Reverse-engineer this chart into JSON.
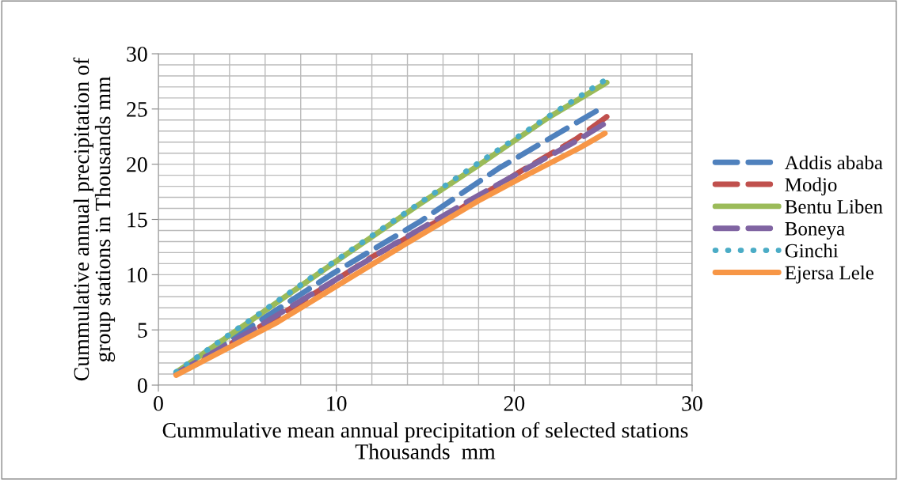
{
  "chart_data": {
    "type": "line",
    "xlabel": "Cummulative mean annual precipitation of selected stations\nThousands  mm",
    "ylabel": "Cummulative annual precipitation of\ngroup stations in Thousands mm",
    "xlim": [
      0,
      30
    ],
    "xticks": [
      0,
      10,
      20,
      30
    ],
    "ylim": [
      0,
      30
    ],
    "yticks": [
      0,
      5,
      10,
      15,
      20,
      25,
      30
    ],
    "grid": true,
    "legend": "right",
    "marker": "none",
    "series": [
      {
        "name": "Addis ababa",
        "color": "#4f81bd",
        "line_style": "dashed",
        "x": [
          1,
          5,
          9.9,
          14.7,
          19.1,
          24.6
        ],
        "values": [
          1.1,
          5.1,
          10.2,
          14.8,
          19.6,
          24.8
        ]
      },
      {
        "name": "Modjo",
        "color": "#c0504d",
        "line_style": "dashed",
        "x": [
          1,
          3.3,
          7.6,
          12,
          16.9,
          20.3,
          23.5,
          25.2
        ],
        "values": [
          1.0,
          3.0,
          7.1,
          11.6,
          15.9,
          19.3,
          22.3,
          24.3
        ]
      },
      {
        "name": "Bentu Liben",
        "color": "#9bbb59",
        "line_style": "solid",
        "x": [
          1,
          4,
          9.9,
          14.7,
          17.8,
          21.9,
          25.2
        ],
        "values": [
          1.15,
          4.5,
          11.1,
          16.4,
          19.7,
          24.2,
          27.4
        ]
      },
      {
        "name": "Boneya",
        "color": "#8064a2",
        "line_style": "dashed",
        "x": [
          1,
          5.3,
          13.4,
          17.9,
          23.6,
          25.0
        ],
        "values": [
          1.05,
          5.0,
          12.9,
          17.1,
          22.2,
          23.6
        ]
      },
      {
        "name": "Ginchi",
        "color": "#4bacc6",
        "line_style": "dotted",
        "x": [
          1,
          4,
          9.9,
          14.7,
          17.7,
          21.9,
          25.0
        ],
        "values": [
          1.2,
          4.6,
          11.2,
          16.5,
          19.8,
          24.3,
          27.5
        ]
      },
      {
        "name": "Ejersa Lele",
        "color": "#f79646",
        "line_style": "solid",
        "x": [
          1,
          6.7,
          13.4,
          18.0,
          20.2,
          23.7,
          25.1
        ],
        "values": [
          0.9,
          5.7,
          12.3,
          16.7,
          18.6,
          21.5,
          22.8
        ]
      }
    ]
  }
}
